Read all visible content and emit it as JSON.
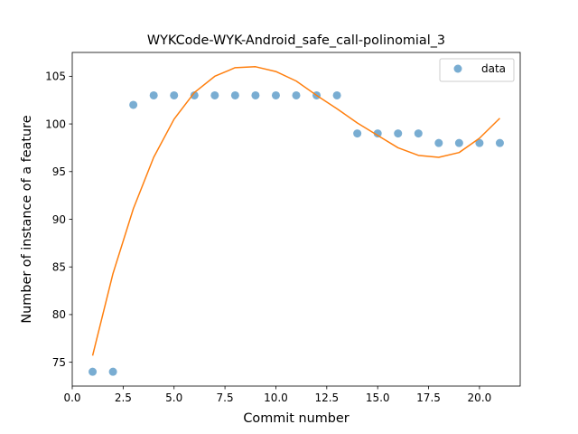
{
  "chart_data": {
    "type": "scatter",
    "title": "WYKCode-WYK-Android_safe_call-polinomial_3",
    "xlabel": "Commit number",
    "ylabel": "Number of instance of a feature",
    "xlim": [
      0,
      22
    ],
    "ylim": [
      72.5,
      107.5
    ],
    "x_ticks": [
      0.0,
      2.5,
      5.0,
      7.5,
      10.0,
      12.5,
      15.0,
      17.5,
      20.0
    ],
    "x_tick_labels": [
      "0.0",
      "2.5",
      "5.0",
      "7.5",
      "10.0",
      "12.5",
      "15.0",
      "17.5",
      "20.0"
    ],
    "y_ticks": [
      75,
      80,
      85,
      90,
      95,
      100,
      105
    ],
    "y_tick_labels": [
      "75",
      "80",
      "85",
      "90",
      "95",
      "100",
      "105"
    ],
    "grid": false,
    "legend": {
      "position": "top-right",
      "entries": [
        "data"
      ]
    },
    "series": [
      {
        "name": "data",
        "kind": "scatter",
        "color": "#1f77b4",
        "x": [
          1,
          2,
          3,
          4,
          5,
          6,
          7,
          8,
          9,
          10,
          11,
          12,
          13,
          14,
          15,
          16,
          17,
          18,
          19,
          20,
          21
        ],
        "y": [
          74,
          74,
          102,
          103,
          103,
          103,
          103,
          103,
          103,
          103,
          103,
          103,
          103,
          99,
          99,
          99,
          99,
          98,
          98,
          98,
          98
        ]
      },
      {
        "kind": "line",
        "color": "#ff7f0e",
        "x": [
          1,
          2,
          3,
          4,
          5,
          6,
          7,
          8,
          9,
          10,
          11,
          12,
          13,
          14,
          15,
          16,
          17,
          18,
          19,
          20,
          21
        ],
        "y": [
          75.7,
          84.3,
          91.1,
          96.5,
          100.5,
          103.3,
          105.0,
          105.9,
          106.0,
          105.5,
          104.5,
          103.0,
          101.6,
          100.1,
          98.8,
          97.5,
          96.7,
          96.5,
          97.0,
          98.5,
          100.6
        ]
      }
    ]
  }
}
